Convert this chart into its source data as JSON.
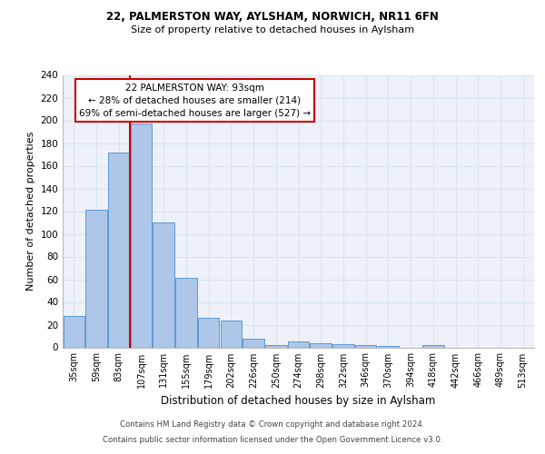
{
  "title1": "22, PALMERSTON WAY, AYLSHAM, NORWICH, NR11 6FN",
  "title2": "Size of property relative to detached houses in Aylsham",
  "xlabel": "Distribution of detached houses by size in Aylsham",
  "ylabel": "Number of detached properties",
  "categories": [
    "35sqm",
    "59sqm",
    "83sqm",
    "107sqm",
    "131sqm",
    "155sqm",
    "179sqm",
    "202sqm",
    "226sqm",
    "250sqm",
    "274sqm",
    "298sqm",
    "322sqm",
    "346sqm",
    "370sqm",
    "394sqm",
    "418sqm",
    "442sqm",
    "466sqm",
    "489sqm",
    "513sqm"
  ],
  "values": [
    28,
    121,
    172,
    197,
    110,
    61,
    26,
    24,
    8,
    2,
    5,
    4,
    3,
    2,
    1,
    0,
    2,
    0,
    0,
    0,
    0
  ],
  "bar_color": "#aec6e8",
  "bar_edge_color": "#5b9bd5",
  "annotation_text_line1": "22 PALMERSTON WAY: 93sqm",
  "annotation_text_line2": "← 28% of detached houses are smaller (214)",
  "annotation_text_line3": "69% of semi-detached houses are larger (527) →",
  "annotation_box_edge_color": "#cc0000",
  "red_line_color": "#cc0000",
  "footer1": "Contains HM Land Registry data © Crown copyright and database right 2024.",
  "footer2": "Contains public sector information licensed under the Open Government Licence v3.0.",
  "ylim": [
    0,
    240
  ],
  "yticks": [
    0,
    20,
    40,
    60,
    80,
    100,
    120,
    140,
    160,
    180,
    200,
    220,
    240
  ],
  "grid_color": "#d8e4f0",
  "background_color": "#eef2f8"
}
